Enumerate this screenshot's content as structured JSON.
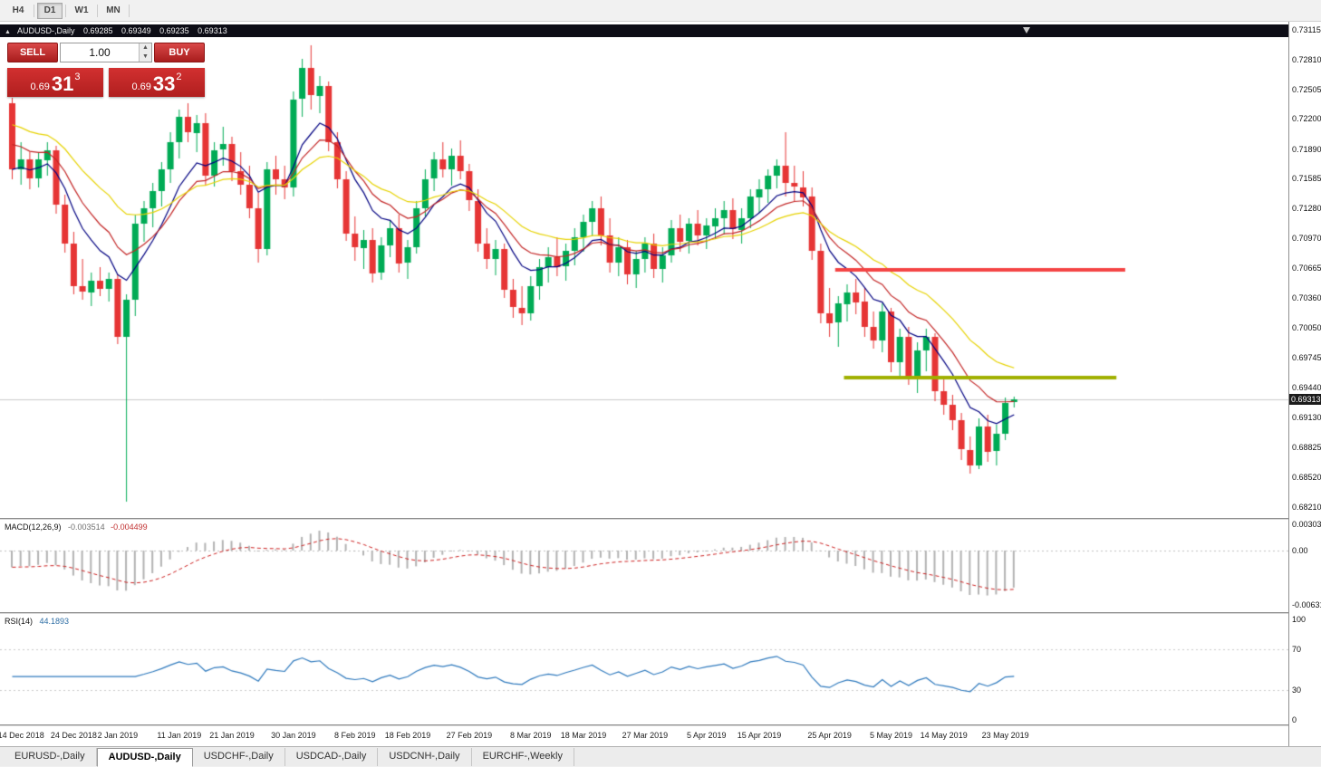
{
  "toolbar": {
    "timeframes": [
      {
        "label": "H4",
        "active": false
      },
      {
        "label": "D1",
        "active": true
      },
      {
        "label": "W1",
        "active": false
      },
      {
        "label": "MN",
        "active": false
      }
    ]
  },
  "symbol_strip": {
    "collapse_icon": "▲",
    "symbol": "AUDUSD-,Daily",
    "open": "0.69285",
    "high": "0.69349",
    "low": "0.69235",
    "close": "0.69313"
  },
  "trade_panel": {
    "sell_label": "SELL",
    "buy_label": "BUY",
    "lot_value": "1.00",
    "sell_price_small": "0.69",
    "sell_price_big": "31",
    "sell_price_sup": "3",
    "buy_price_small": "0.69",
    "buy_price_big": "33",
    "buy_price_sup": "2"
  },
  "price_axis": {
    "bid_label": "0.69313",
    "labels": [
      "0.73115",
      "0.72810",
      "0.72505",
      "0.72200",
      "0.71890",
      "0.71585",
      "0.71280",
      "0.70970",
      "0.70665",
      "0.70360",
      "0.70050",
      "0.69745",
      "0.69440",
      "0.69130",
      "0.68825",
      "0.68520",
      "0.68210"
    ]
  },
  "chart_data": {
    "type": "candlestick",
    "title": "AUDUSD-,Daily",
    "y_axis": {
      "top": 0.73115,
      "bottom": 0.6821
    },
    "bid": 0.69313,
    "candle_colors": {
      "bull": "#00ab55",
      "bear": "#e63535"
    },
    "ohlc": [
      [
        0.7236,
        0.7242,
        0.7158,
        0.7168
      ],
      [
        0.7168,
        0.7196,
        0.7152,
        0.7178
      ],
      [
        0.7178,
        0.7186,
        0.7148,
        0.7158
      ],
      [
        0.7158,
        0.7186,
        0.715,
        0.7178
      ],
      [
        0.7178,
        0.7196,
        0.7162,
        0.7188
      ],
      [
        0.7188,
        0.7192,
        0.7122,
        0.7132
      ],
      [
        0.7132,
        0.7142,
        0.7082,
        0.7092
      ],
      [
        0.7092,
        0.7104,
        0.704,
        0.7048
      ],
      [
        0.7048,
        0.7076,
        0.7034,
        0.7042
      ],
      [
        0.7042,
        0.7062,
        0.7028,
        0.7054
      ],
      [
        0.7054,
        0.7068,
        0.7038,
        0.7046
      ],
      [
        0.7046,
        0.7062,
        0.7032,
        0.7056
      ],
      [
        0.7056,
        0.706,
        0.6988,
        0.6996
      ],
      [
        0.6996,
        0.704,
        0.6827,
        0.7034
      ],
      [
        0.7034,
        0.7122,
        0.7018,
        0.7112
      ],
      [
        0.7112,
        0.7136,
        0.7094,
        0.7128
      ],
      [
        0.7128,
        0.7154,
        0.7108,
        0.7146
      ],
      [
        0.7146,
        0.7176,
        0.713,
        0.7168
      ],
      [
        0.7168,
        0.7206,
        0.7154,
        0.7196
      ],
      [
        0.7196,
        0.723,
        0.718,
        0.7222
      ],
      [
        0.7222,
        0.7236,
        0.7196,
        0.7206
      ],
      [
        0.7206,
        0.7224,
        0.7186,
        0.7216
      ],
      [
        0.7216,
        0.7226,
        0.7152,
        0.7162
      ],
      [
        0.7162,
        0.7196,
        0.715,
        0.7188
      ],
      [
        0.7188,
        0.7212,
        0.7172,
        0.7194
      ],
      [
        0.7194,
        0.7202,
        0.7156,
        0.7166
      ],
      [
        0.7166,
        0.7186,
        0.7142,
        0.7152
      ],
      [
        0.7152,
        0.7172,
        0.7118,
        0.7128
      ],
      [
        0.7128,
        0.7144,
        0.7072,
        0.7086
      ],
      [
        0.7086,
        0.7176,
        0.708,
        0.7168
      ],
      [
        0.7168,
        0.7182,
        0.7142,
        0.7158
      ],
      [
        0.7158,
        0.7172,
        0.7138,
        0.715
      ],
      [
        0.715,
        0.7248,
        0.714,
        0.724
      ],
      [
        0.724,
        0.7282,
        0.7222,
        0.7272
      ],
      [
        0.7272,
        0.7296,
        0.723,
        0.7244
      ],
      [
        0.7244,
        0.7264,
        0.7226,
        0.7254
      ],
      [
        0.7254,
        0.7258,
        0.7186,
        0.7196
      ],
      [
        0.7196,
        0.7206,
        0.7148,
        0.7158
      ],
      [
        0.7158,
        0.7166,
        0.7094,
        0.7102
      ],
      [
        0.7102,
        0.712,
        0.7074,
        0.7088
      ],
      [
        0.7088,
        0.7106,
        0.7066,
        0.7096
      ],
      [
        0.7096,
        0.7108,
        0.7052,
        0.7062
      ],
      [
        0.7062,
        0.7098,
        0.7054,
        0.709
      ],
      [
        0.709,
        0.7116,
        0.7078,
        0.7108
      ],
      [
        0.7108,
        0.7122,
        0.7062,
        0.7072
      ],
      [
        0.7072,
        0.7096,
        0.7056,
        0.7088
      ],
      [
        0.7088,
        0.7136,
        0.7082,
        0.7128
      ],
      [
        0.7128,
        0.7168,
        0.712,
        0.7158
      ],
      [
        0.7158,
        0.7186,
        0.7146,
        0.7178
      ],
      [
        0.7178,
        0.7196,
        0.716,
        0.7168
      ],
      [
        0.7168,
        0.719,
        0.7152,
        0.7182
      ],
      [
        0.7182,
        0.7198,
        0.7158,
        0.7166
      ],
      [
        0.7166,
        0.7174,
        0.7126,
        0.7136
      ],
      [
        0.7136,
        0.7148,
        0.7084,
        0.7092
      ],
      [
        0.7092,
        0.7108,
        0.7066,
        0.7076
      ],
      [
        0.7076,
        0.7096,
        0.706,
        0.7086
      ],
      [
        0.7086,
        0.7092,
        0.7036,
        0.7044
      ],
      [
        0.7044,
        0.7056,
        0.7016,
        0.7026
      ],
      [
        0.7026,
        0.7048,
        0.7008,
        0.702
      ],
      [
        0.702,
        0.7058,
        0.7012,
        0.7048
      ],
      [
        0.7048,
        0.7076,
        0.7034,
        0.7068
      ],
      [
        0.7068,
        0.7088,
        0.7052,
        0.7078
      ],
      [
        0.7078,
        0.7098,
        0.7058,
        0.7068
      ],
      [
        0.7068,
        0.7092,
        0.7054,
        0.7084
      ],
      [
        0.7084,
        0.7108,
        0.707,
        0.7098
      ],
      [
        0.7098,
        0.7122,
        0.7084,
        0.7114
      ],
      [
        0.7114,
        0.7136,
        0.71,
        0.7128
      ],
      [
        0.7128,
        0.714,
        0.709,
        0.71
      ],
      [
        0.71,
        0.7118,
        0.7062,
        0.7072
      ],
      [
        0.7072,
        0.7098,
        0.7058,
        0.7088
      ],
      [
        0.7088,
        0.7096,
        0.705,
        0.706
      ],
      [
        0.706,
        0.7084,
        0.7046,
        0.7076
      ],
      [
        0.7076,
        0.7098,
        0.7062,
        0.7092
      ],
      [
        0.7092,
        0.7102,
        0.7056,
        0.7066
      ],
      [
        0.7066,
        0.7088,
        0.7052,
        0.708
      ],
      [
        0.708,
        0.7116,
        0.7072,
        0.7108
      ],
      [
        0.7108,
        0.7122,
        0.7084,
        0.7094
      ],
      [
        0.7094,
        0.7118,
        0.7082,
        0.7112
      ],
      [
        0.7112,
        0.7126,
        0.709,
        0.71
      ],
      [
        0.71,
        0.7118,
        0.7086,
        0.711
      ],
      [
        0.711,
        0.7128,
        0.7096,
        0.7118
      ],
      [
        0.7118,
        0.7136,
        0.7102,
        0.7126
      ],
      [
        0.7126,
        0.7138,
        0.7096,
        0.7106
      ],
      [
        0.7106,
        0.7128,
        0.7092,
        0.7118
      ],
      [
        0.7118,
        0.7148,
        0.7108,
        0.714
      ],
      [
        0.714,
        0.7158,
        0.7124,
        0.7148
      ],
      [
        0.7148,
        0.7168,
        0.7134,
        0.7162
      ],
      [
        0.7162,
        0.7178,
        0.7148,
        0.7172
      ],
      [
        0.7172,
        0.7206,
        0.714,
        0.7154
      ],
      [
        0.7154,
        0.7172,
        0.7136,
        0.715
      ],
      [
        0.715,
        0.7166,
        0.713,
        0.714
      ],
      [
        0.714,
        0.715,
        0.7076,
        0.7084
      ],
      [
        0.7084,
        0.7092,
        0.701,
        0.702
      ],
      [
        0.702,
        0.7046,
        0.6996,
        0.701
      ],
      [
        0.701,
        0.7038,
        0.6986,
        0.703
      ],
      [
        0.703,
        0.705,
        0.7012,
        0.7042
      ],
      [
        0.7042,
        0.7056,
        0.702,
        0.7032
      ],
      [
        0.7032,
        0.7046,
        0.6996,
        0.7006
      ],
      [
        0.7006,
        0.7022,
        0.6984,
        0.6992
      ],
      [
        0.6992,
        0.703,
        0.698,
        0.7022
      ],
      [
        0.7022,
        0.7026,
        0.696,
        0.697
      ],
      [
        0.697,
        0.7004,
        0.6956,
        0.6996
      ],
      [
        0.6996,
        0.7006,
        0.6946,
        0.6956
      ],
      [
        0.6956,
        0.699,
        0.6938,
        0.6982
      ],
      [
        0.6982,
        0.7004,
        0.696,
        0.6996
      ],
      [
        0.6996,
        0.7,
        0.693,
        0.694
      ],
      [
        0.694,
        0.6954,
        0.6916,
        0.6926
      ],
      [
        0.6926,
        0.6936,
        0.69,
        0.691
      ],
      [
        0.691,
        0.6918,
        0.687,
        0.688
      ],
      [
        0.688,
        0.6894,
        0.6856,
        0.6864
      ],
      [
        0.6864,
        0.6912,
        0.686,
        0.6904
      ],
      [
        0.6904,
        0.6916,
        0.6868,
        0.6878
      ],
      [
        0.6878,
        0.6906,
        0.6864,
        0.6896
      ],
      [
        0.6896,
        0.6934,
        0.689,
        0.6928
      ],
      [
        0.69285,
        0.69349,
        0.69235,
        0.69313
      ]
    ],
    "x_labels": [
      {
        "text": "14 Dec 2018",
        "index": 1
      },
      {
        "text": "24 Dec 2018",
        "index": 7
      },
      {
        "text": "2 Jan 2019",
        "index": 12
      },
      {
        "text": "11 Jan 2019",
        "index": 19
      },
      {
        "text": "21 Jan 2019",
        "index": 25
      },
      {
        "text": "30 Jan 2019",
        "index": 32
      },
      {
        "text": "8 Feb 2019",
        "index": 39
      },
      {
        "text": "18 Feb 2019",
        "index": 45
      },
      {
        "text": "27 Feb 2019",
        "index": 52
      },
      {
        "text": "8 Mar 2019",
        "index": 59
      },
      {
        "text": "18 Mar 2019",
        "index": 65
      },
      {
        "text": "27 Mar 2019",
        "index": 72
      },
      {
        "text": "5 Apr 2019",
        "index": 79
      },
      {
        "text": "15 Apr 2019",
        "index": 85
      },
      {
        "text": "25 Apr 2019",
        "index": 93
      },
      {
        "text": "5 May 2019",
        "index": 100
      },
      {
        "text": "14 May 2019",
        "index": 106
      },
      {
        "text": "23 May 2019",
        "index": 113
      }
    ],
    "moving_averages": [
      {
        "type": "ema",
        "period": 8,
        "color": "#000080",
        "seed_offset": 0.0
      },
      {
        "type": "ema",
        "period": 13,
        "color": "#c22424",
        "seed_offset": 0.003
      },
      {
        "type": "ema",
        "period": 24,
        "color": "#e6d200",
        "seed_offset": 0.005
      }
    ],
    "hlines": [
      {
        "price": 0.7065,
        "color": "#f44444",
        "from_index": 94,
        "to_index": 127,
        "width": 4,
        "name": "resistance"
      },
      {
        "price": 0.6954,
        "color": "#a0b000",
        "from_index": 95,
        "to_index": 126,
        "width": 4,
        "name": "support"
      }
    ],
    "indicators": {
      "macd": {
        "label": "MACD(12,26,9)",
        "value_macd": "-0.003514",
        "value_signal": "-0.004499",
        "fast": 12,
        "slow": 26,
        "signal": 9,
        "seed_fast_offset": 0.0012,
        "seed_slow_offset": 0.0032,
        "scale": {
          "max": 0.0036,
          "min": -0.0072
        },
        "axis": [
          {
            "text": "0.00303",
            "value": 0.00303
          },
          {
            "text": "0.00",
            "value": 0
          },
          {
            "text": "-0.00631",
            "value": -0.00631
          }
        ],
        "hist_color": "#b2b2b2",
        "signal_color": "#cc2020"
      },
      "rsi": {
        "label": "RSI(14)",
        "value": "44.1893",
        "period": 14,
        "color": "#2e79bd",
        "levels": [
          70,
          30
        ],
        "axis": [
          {
            "text": "100",
            "value": 100
          },
          {
            "text": "70",
            "value": 70
          },
          {
            "text": "30",
            "value": 30
          },
          {
            "text": "0",
            "value": 0
          }
        ]
      }
    }
  },
  "tabs": [
    {
      "label": "EURUSD-,Daily",
      "active": false
    },
    {
      "label": "AUDUSD-,Daily",
      "active": true
    },
    {
      "label": "USDCHF-,Daily",
      "active": false
    },
    {
      "label": "USDCAD-,Daily",
      "active": false
    },
    {
      "label": "USDCNH-,Daily",
      "active": false
    },
    {
      "label": "EURCHF-,Weekly",
      "active": false
    }
  ]
}
